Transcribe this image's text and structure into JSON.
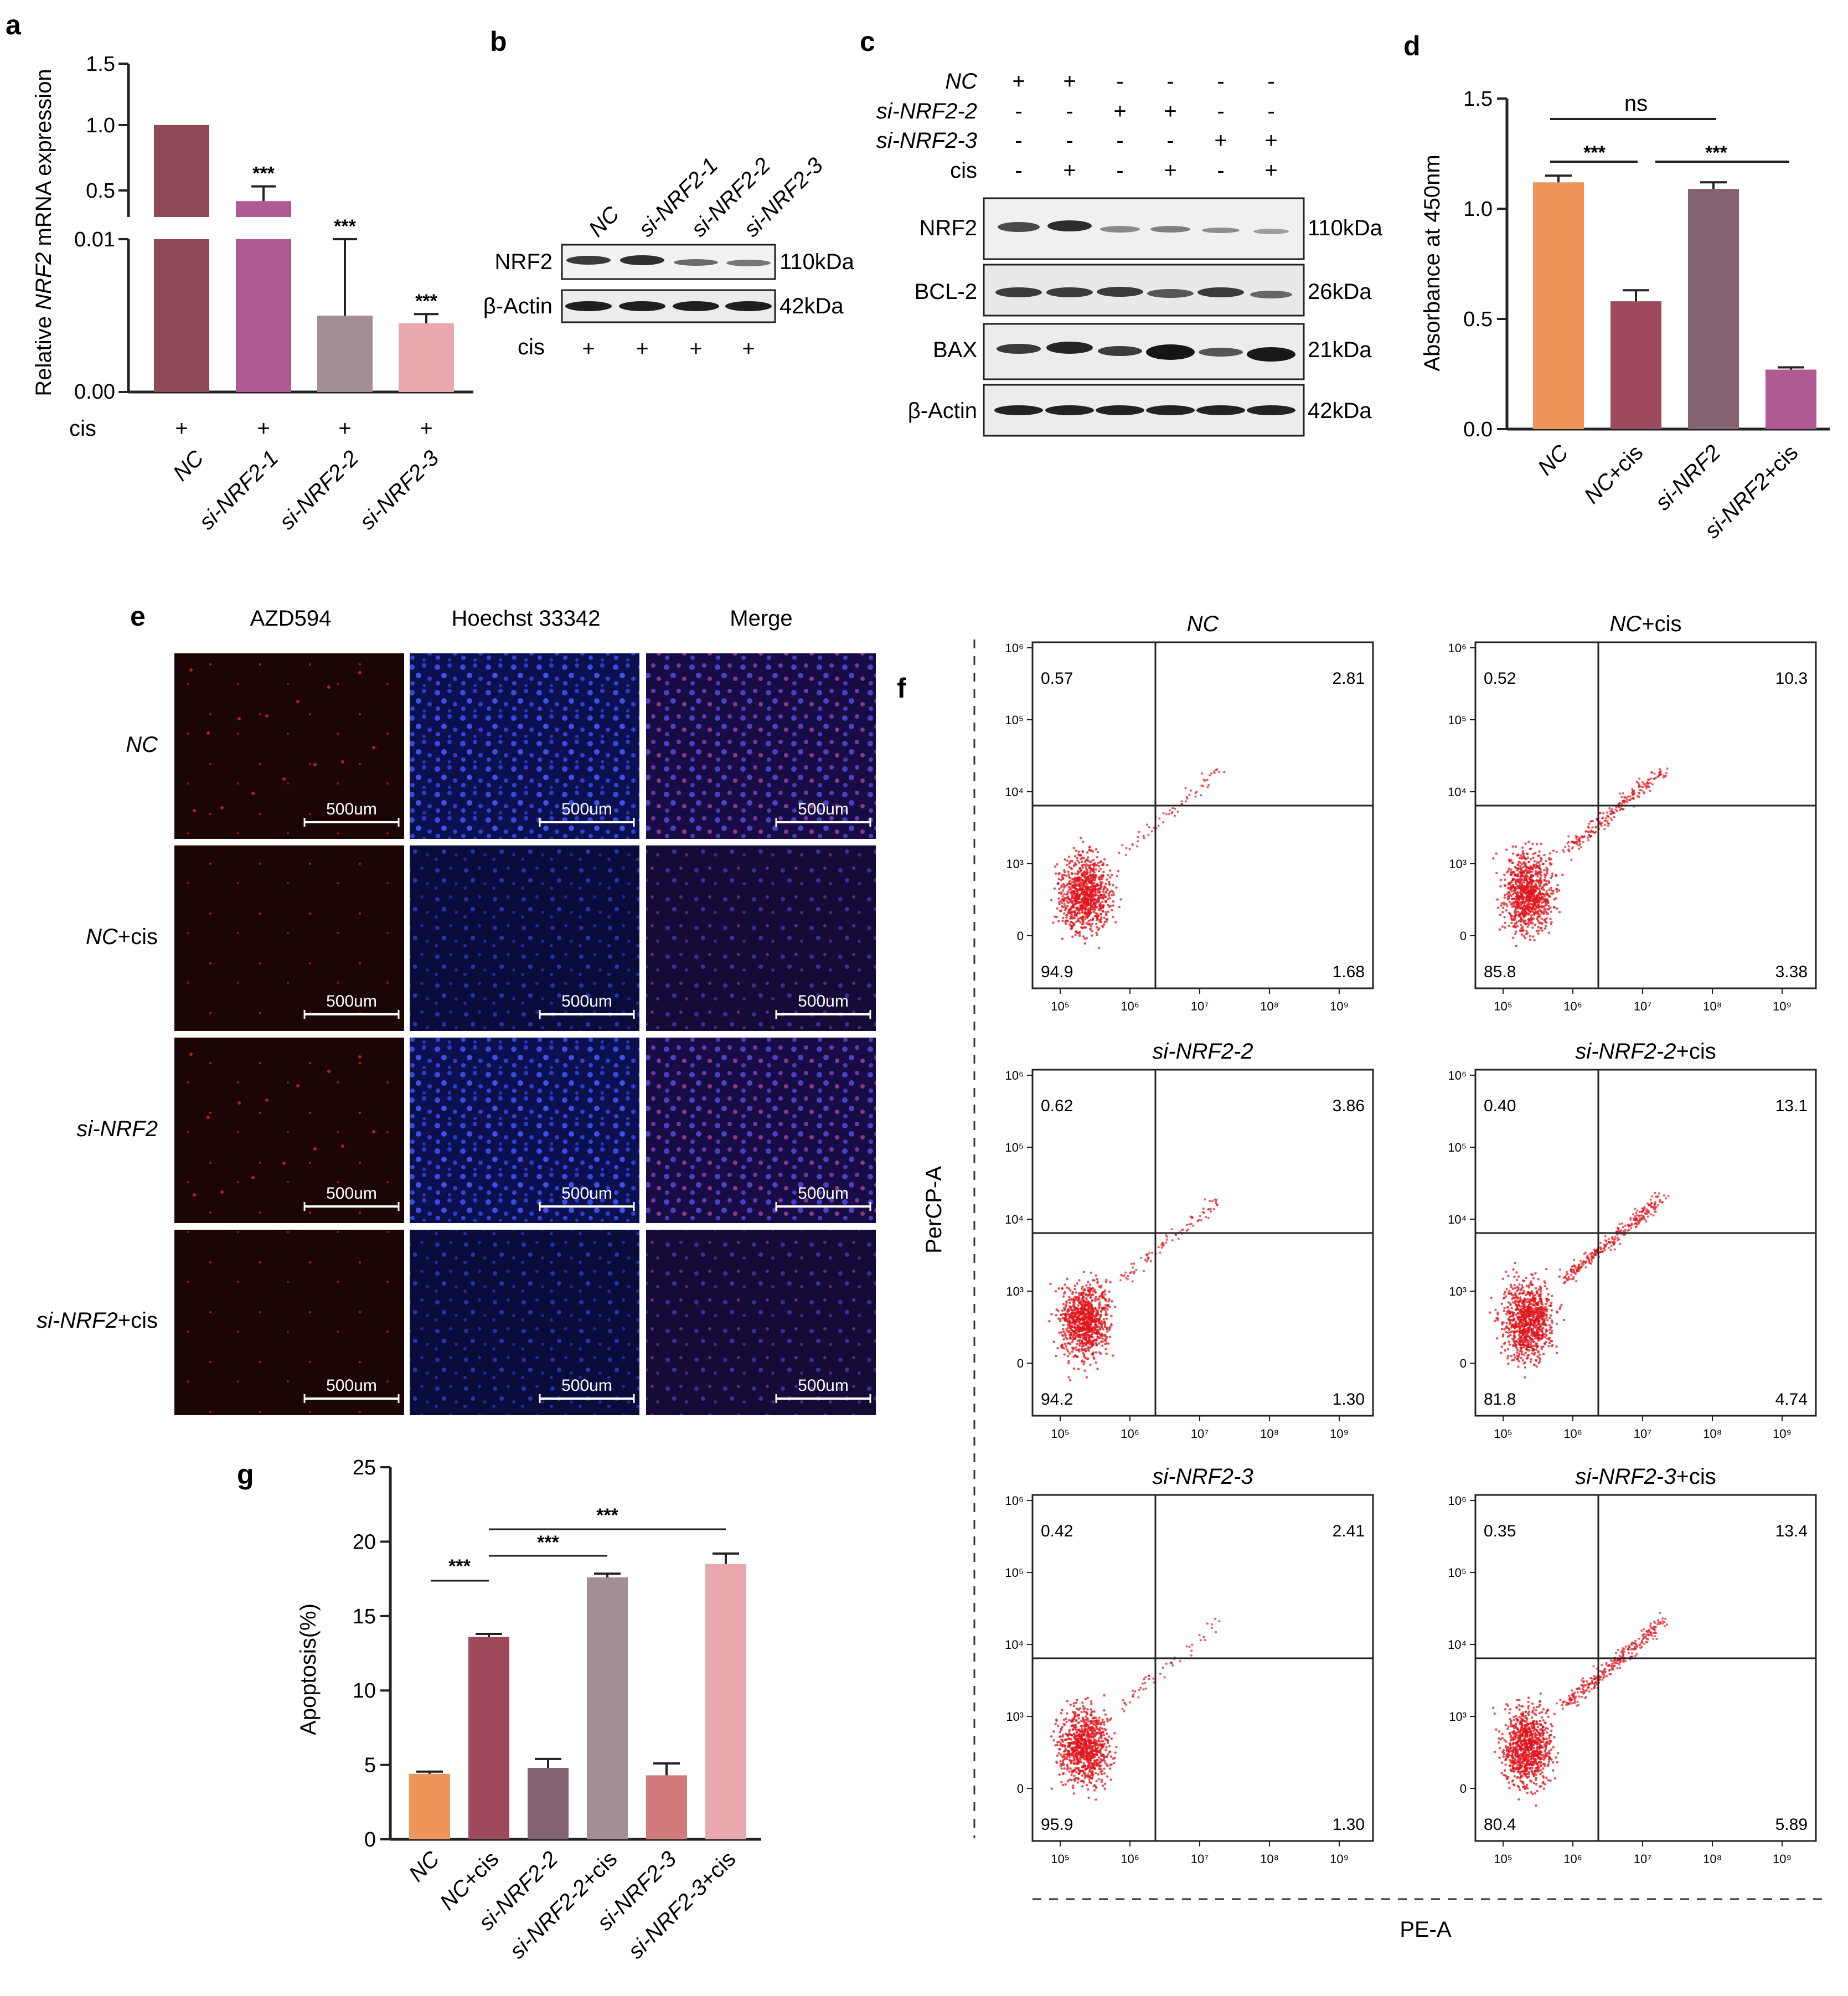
{
  "panels": {
    "a": {
      "letter": "a",
      "ylabel_prefix": "Relative ",
      "ylabel_gene": "NRF2",
      "ylabel_suffix": " mRNA expression",
      "ticks_upper": [
        "1.5",
        "1.0",
        "0.5"
      ],
      "ticks_lower": [
        "0.01",
        "0.00"
      ],
      "cis_label": "cis",
      "plus": "+",
      "sig": "***",
      "categories": [
        "NC",
        "si-NRF2-1",
        "si-NRF2-2",
        "si-NRF2-3"
      ]
    },
    "b": {
      "letter": "b",
      "lanes": [
        "NC",
        "si-NRF2-1",
        "si-NRF2-2",
        "si-NRF2-3"
      ],
      "rows": [
        "NRF2",
        "β-Actin"
      ],
      "sizes": [
        "110kDa",
        "42kDa"
      ],
      "cis_label": "cis",
      "plus": "+"
    },
    "c": {
      "letter": "c",
      "conditions": [
        {
          "label": "NC",
          "italic": true,
          "marks": [
            "+",
            "+",
            "-",
            "-",
            "-",
            "-"
          ]
        },
        {
          "label": "si-NRF2-2",
          "italic": true,
          "marks": [
            "-",
            "-",
            "+",
            "+",
            "-",
            "-"
          ]
        },
        {
          "label": "si-NRF2-3",
          "italic": true,
          "marks": [
            "-",
            "-",
            "-",
            "-",
            "+",
            "+"
          ]
        },
        {
          "label": "cis",
          "italic": false,
          "marks": [
            "-",
            "+",
            "-",
            "+",
            "-",
            "+"
          ]
        }
      ],
      "blots": [
        {
          "name": "NRF2",
          "size": "110kDa"
        },
        {
          "name": "BCL-2",
          "size": "26kDa"
        },
        {
          "name": "BAX",
          "size": "21kDa"
        },
        {
          "name": "β-Actin",
          "size": "42kDa"
        }
      ]
    },
    "d": {
      "letter": "d",
      "ylabel": "Absorbance at 450nm",
      "ns": "ns",
      "sig": "***",
      "ticks": [
        "1.5",
        "1.0",
        "0.5",
        "0.0"
      ],
      "categories": [
        "NC",
        "NC+cis",
        "si-NRF2",
        "si-NRF2+cis"
      ]
    },
    "e": {
      "letter": "e",
      "columns": [
        "AZD594",
        "Hoechst 33342",
        "Merge"
      ],
      "row_labels": [
        {
          "italic": "NC",
          "rest": ""
        },
        {
          "italic": "NC",
          "rest": "+cis"
        },
        {
          "italic": "si-NRF2",
          "rest": ""
        },
        {
          "italic": "si-NRF2",
          "rest": "+cis"
        }
      ],
      "scale": "500um"
    },
    "f": {
      "letter": "f",
      "ylabel": "PerCP-A",
      "xlabel": "PE-A",
      "x_ticks": [
        "10⁵",
        "10⁶",
        "10⁷",
        "10⁸",
        "10⁹"
      ],
      "y_ticks": [
        "10⁶",
        "10⁵",
        "10⁴",
        "10³",
        "0"
      ],
      "plots": [
        {
          "title_italic": "NC",
          "title_rest": "",
          "ul": "0.57",
          "ur": "2.81",
          "ll": "94.9",
          "lr": "1.68"
        },
        {
          "title_italic": "NC",
          "title_rest": "+cis",
          "ul": "0.52",
          "ur": "10.3",
          "ll": "85.8",
          "lr": "3.38"
        },
        {
          "title_italic": "si-NRF2-2",
          "title_rest": "",
          "ul": "0.62",
          "ur": "3.86",
          "ll": "94.2",
          "lr": "1.30"
        },
        {
          "title_italic": "si-NRF2-2",
          "title_rest": "+cis",
          "ul": "0.40",
          "ur": "13.1",
          "ll": "81.8",
          "lr": "4.74"
        },
        {
          "title_italic": "si-NRF2-3",
          "title_rest": "",
          "ul": "0.42",
          "ur": "2.41",
          "ll": "95.9",
          "lr": "1.30"
        },
        {
          "title_italic": "si-NRF2-3",
          "title_rest": "+cis",
          "ul": "0.35",
          "ur": "13.4",
          "ll": "80.4",
          "lr": "5.89"
        }
      ]
    },
    "g": {
      "letter": "g",
      "ylabel": "Apoptosis(%)",
      "sig": "***",
      "ticks": [
        "25",
        "20",
        "15",
        "10",
        "5",
        "0"
      ],
      "categories": [
        "NC",
        "NC+cis",
        "si-NRF2-2",
        "si-NRF2-2+cis",
        "si-NRF2-3",
        "si-NRF2-3+cis"
      ]
    }
  },
  "chart_data": [
    {
      "panel": "a",
      "type": "bar",
      "title": "",
      "ylabel": "Relative NRF2 mRNA expression",
      "categories": [
        "NC",
        "si-NRF2-1",
        "si-NRF2-2",
        "si-NRF2-3"
      ],
      "values": [
        1.0,
        0.38,
        0.005,
        0.0045
      ],
      "errors": [
        0.0,
        0.12,
        0.005,
        0.0006
      ],
      "ylim_upper": [
        0.25,
        1.5
      ],
      "ylim_lower": [
        0.0,
        0.01
      ],
      "broken_axis": true,
      "significance": [
        "",
        "***",
        "***",
        "***"
      ],
      "colors": [
        "#8e4a59",
        "#b05a93",
        "#a38d96",
        "#e8a8ad"
      ]
    },
    {
      "panel": "d",
      "type": "bar",
      "title": "",
      "ylabel": "Absorbance at 450nm",
      "categories": [
        "NC",
        "NC+cis",
        "si-NRF2",
        "si-NRF2+cis"
      ],
      "values": [
        1.12,
        0.58,
        1.09,
        0.27
      ],
      "errors": [
        0.03,
        0.05,
        0.03,
        0.01
      ],
      "ylim": [
        0,
        1.5
      ],
      "colors": [
        "#f0955a",
        "#9c4a5c",
        "#866373",
        "#b05a93"
      ]
    },
    {
      "panel": "g",
      "type": "bar",
      "title": "",
      "ylabel": "Apoptosis(%)",
      "categories": [
        "NC",
        "NC+cis",
        "si-NRF2-2",
        "si-NRF2-2+cis",
        "si-NRF2-3",
        "si-NRF2-3+cis"
      ],
      "values": [
        4.4,
        13.6,
        4.8,
        17.6,
        4.3,
        18.5
      ],
      "errors": [
        0.15,
        0.2,
        0.6,
        0.25,
        0.8,
        0.7
      ],
      "ylim": [
        0,
        25
      ],
      "colors": [
        "#f0955a",
        "#9c4a5c",
        "#866373",
        "#a38d96",
        "#d07a7c",
        "#e8a8ad"
      ]
    }
  ],
  "colors": {
    "flow_dots": "#e0141c",
    "fluor_blue": "#1d2aa6",
    "fluor_red": "#d8242a"
  }
}
